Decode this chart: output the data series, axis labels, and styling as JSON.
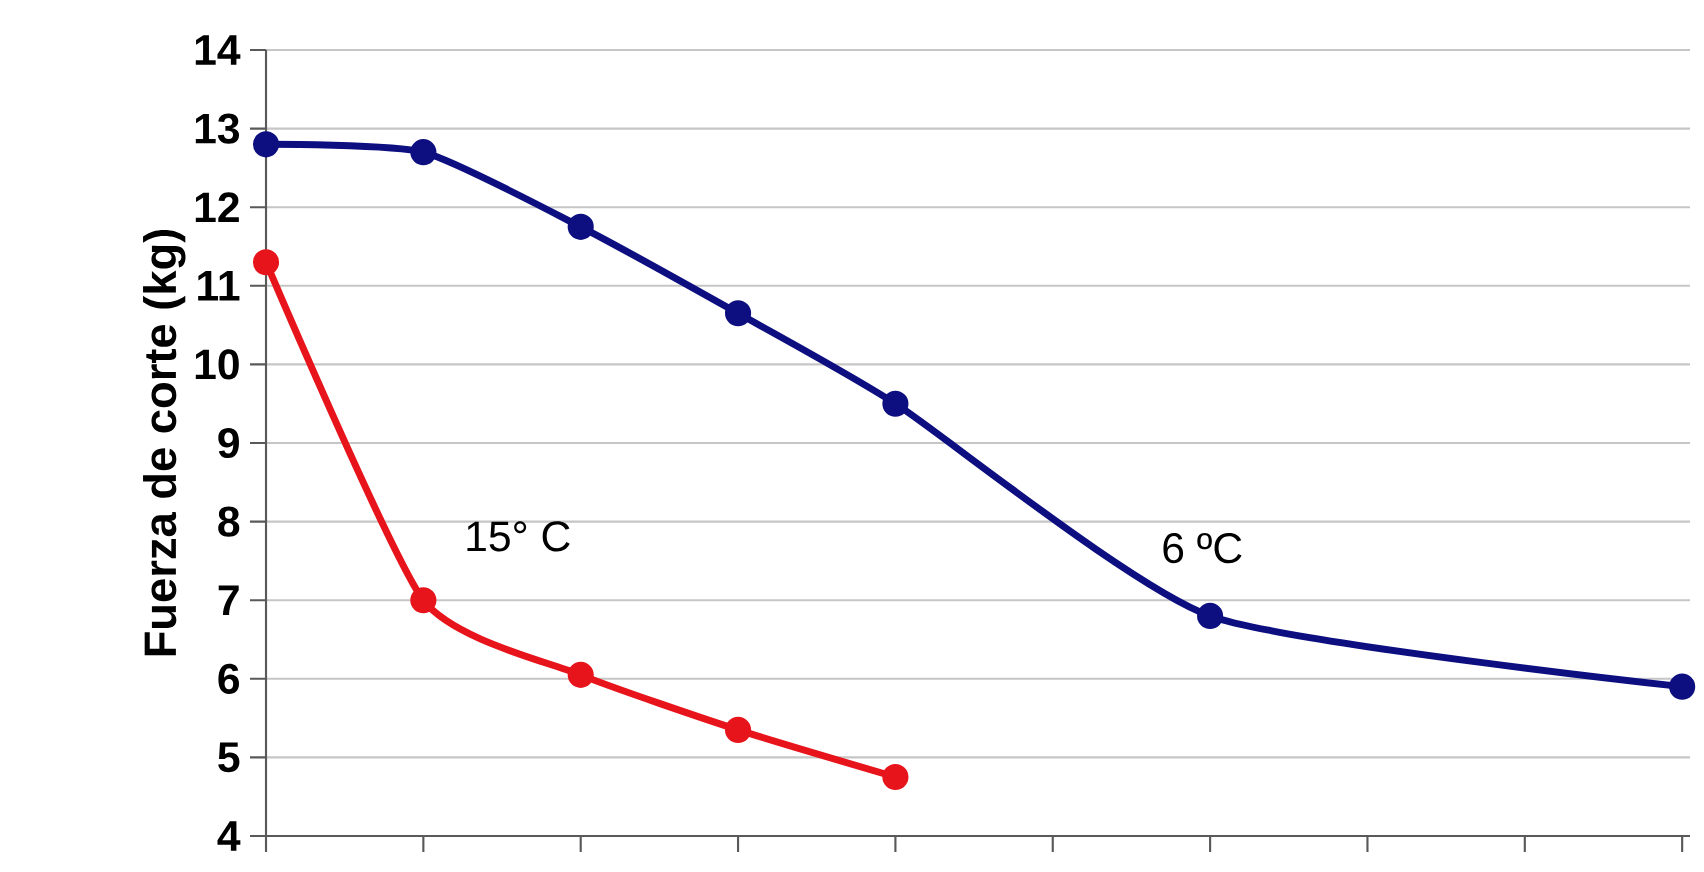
{
  "chart_data": {
    "type": "line",
    "ylabel": "Fuerza de corte (kg)",
    "categories": [
      null,
      null,
      null,
      null,
      null,
      null,
      null,
      null,
      null,
      null
    ],
    "series": [
      {
        "name": "15° C",
        "color": "#e8141b",
        "values": [
          11.3,
          7.0,
          6.05,
          5.35,
          4.75,
          null,
          null,
          null,
          null,
          null
        ]
      },
      {
        "name": "6 ºC",
        "color": "#0d0f80",
        "values": [
          12.8,
          12.7,
          11.75,
          10.65,
          9.5,
          null,
          6.8,
          null,
          null,
          5.9
        ]
      }
    ],
    "ylim": [
      4,
      14
    ],
    "yticks": [
      4,
      5,
      6,
      7,
      8,
      9,
      10,
      11,
      12,
      13,
      14
    ],
    "grid": "y",
    "marker": "circle",
    "line_style": "solid",
    "tick_labels": "y",
    "legend": false
  }
}
